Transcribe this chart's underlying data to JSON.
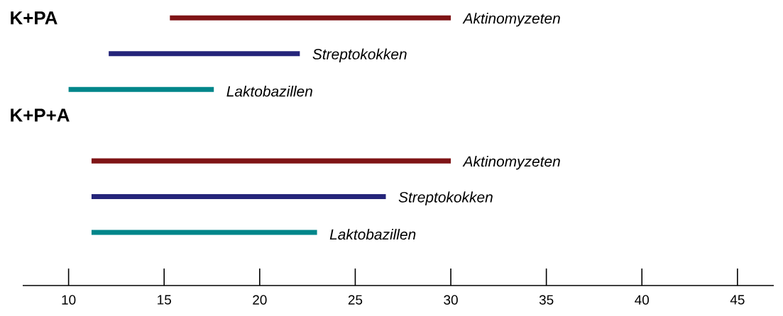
{
  "chart_data": {
    "type": "bar",
    "orientation": "horizontal",
    "categories": [
      "Aktinomyzeten",
      "Streptokokken",
      "Laktobazillen",
      null,
      "Aktinomyzeten",
      "Streptokokken",
      "Laktobazillen"
    ],
    "base": [
      15.3,
      12.1,
      10,
      null,
      11.2,
      11.2,
      11.2
    ],
    "values": [
      14.7,
      10,
      7.6,
      null,
      18.8,
      15.4,
      11.8
    ],
    "colors": [
      "#7f1416",
      "#25257a",
      "#00868a",
      null,
      "#7f1416",
      "#25257a",
      "#00868a"
    ],
    "xlim": [
      7.6,
      46.9
    ],
    "xticks": [
      10,
      15,
      20,
      25,
      30,
      35,
      40,
      45
    ],
    "tick_labels": "x",
    "annotations": [
      "K+PA",
      "K+P+A"
    ]
  }
}
